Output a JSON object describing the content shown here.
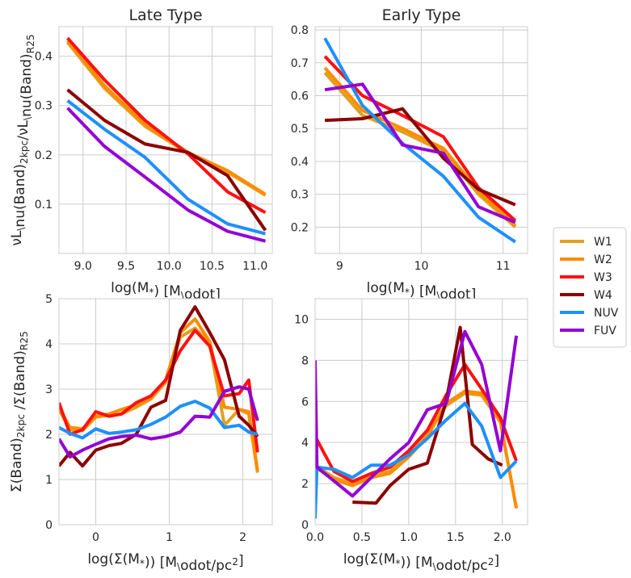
{
  "chart_data": [
    {
      "type": "line",
      "title": "Late Type",
      "xlabel": "log(M$_*$) [M$_\\odot$]",
      "ylabel": "$\\nu$L$_\\nu$(Band)$_{2kpc}$/$\\nu$L$_\\nu$(Band)$_{R25}$",
      "xlim": [
        8.72,
        11.2
      ],
      "ylim": [
        0.0,
        0.46
      ],
      "xticks": [
        "9.0",
        "9.5",
        "10.0",
        "10.5",
        "11.0"
      ],
      "yticks": [
        "0.1",
        "0.2",
        "0.3",
        "0.4"
      ],
      "grid": true,
      "series": [
        {
          "name": "W1",
          "x": [
            8.82,
            9.25,
            9.72,
            10.22,
            10.68,
            11.12
          ],
          "y": [
            0.428,
            0.335,
            0.258,
            0.203,
            0.165,
            0.118
          ]
        },
        {
          "name": "W2",
          "x": [
            8.82,
            9.25,
            9.72,
            10.22,
            10.68,
            11.12
          ],
          "y": [
            0.432,
            0.34,
            0.262,
            0.205,
            0.168,
            0.12
          ]
        },
        {
          "name": "W3",
          "x": [
            8.82,
            9.25,
            9.72,
            10.22,
            10.68,
            11.12
          ],
          "y": [
            0.437,
            0.352,
            0.27,
            0.202,
            0.125,
            0.083
          ]
        },
        {
          "name": "W4",
          "x": [
            8.82,
            9.25,
            9.72,
            10.22,
            10.68,
            11.12
          ],
          "y": [
            0.332,
            0.27,
            0.222,
            0.205,
            0.158,
            0.047
          ]
        },
        {
          "name": "NUV",
          "x": [
            8.82,
            9.25,
            9.72,
            10.22,
            10.68,
            11.12
          ],
          "y": [
            0.31,
            0.252,
            0.195,
            0.11,
            0.06,
            0.04
          ]
        },
        {
          "name": "FUV",
          "x": [
            8.82,
            9.25,
            9.72,
            10.22,
            10.68,
            11.12
          ],
          "y": [
            0.295,
            0.217,
            0.155,
            0.088,
            0.045,
            0.025
          ]
        }
      ]
    },
    {
      "type": "line",
      "title": "Early Type",
      "xlabel": "log(M$_*$) [M$_\\odot$]",
      "ylabel": "",
      "xlim": [
        8.7,
        11.3
      ],
      "ylim": [
        0.12,
        0.81
      ],
      "xticks": [
        "9",
        "10",
        "11"
      ],
      "yticks": [
        "0.2",
        "0.3",
        "0.4",
        "0.5",
        "0.6",
        "0.7",
        "0.8"
      ],
      "grid": true,
      "series": [
        {
          "name": "W1",
          "x": [
            8.82,
            9.28,
            9.77,
            10.27,
            10.7,
            11.15
          ],
          "y": [
            0.67,
            0.54,
            0.49,
            0.43,
            0.3,
            0.2
          ]
        },
        {
          "name": "W2",
          "x": [
            8.82,
            9.28,
            9.77,
            10.27,
            10.7,
            11.15
          ],
          "y": [
            0.685,
            0.555,
            0.5,
            0.44,
            0.31,
            0.205
          ]
        },
        {
          "name": "W3",
          "x": [
            8.82,
            9.28,
            9.77,
            10.27,
            10.7,
            11.15
          ],
          "y": [
            0.72,
            0.6,
            0.54,
            0.475,
            0.32,
            0.22
          ]
        },
        {
          "name": "W4",
          "x": [
            8.82,
            9.28,
            9.77,
            10.27,
            10.7,
            11.15
          ],
          "y": [
            0.525,
            0.53,
            0.56,
            0.41,
            0.315,
            0.268
          ]
        },
        {
          "name": "NUV",
          "x": [
            8.82,
            9.28,
            9.77,
            10.27,
            10.7,
            11.15
          ],
          "y": [
            0.775,
            0.57,
            0.455,
            0.355,
            0.23,
            0.155
          ]
        },
        {
          "name": "FUV",
          "x": [
            8.82,
            9.28,
            9.77,
            10.27,
            10.7,
            11.15
          ],
          "y": [
            0.618,
            0.635,
            0.45,
            0.425,
            0.262,
            0.215
          ]
        }
      ]
    },
    {
      "type": "line",
      "title": "",
      "xlabel": "log($\\Sigma$(M$_*$)) [M$_\\odot$/pc$^2$]",
      "ylabel": "$\\Sigma$(Band)$_{2kpc}$ /$\\Sigma$(Band)$_{R25}$",
      "xlim": [
        -0.5,
        2.4
      ],
      "ylim": [
        0,
        5
      ],
      "xticks": [
        "0",
        "1",
        "2"
      ],
      "yticks": [
        "0",
        "1",
        "2",
        "3",
        "4",
        "5"
      ],
      "grid": true,
      "series": [
        {
          "name": "W1",
          "x": [
            -0.5,
            -0.35,
            -0.18,
            0.0,
            0.18,
            0.35,
            0.55,
            0.75,
            0.95,
            1.15,
            1.35,
            1.55,
            1.75,
            1.95,
            2.08,
            2.2
          ],
          "y": [
            2.55,
            2.1,
            2.08,
            2.38,
            2.42,
            2.45,
            2.6,
            2.78,
            3.15,
            4.15,
            4.35,
            4.0,
            2.2,
            2.55,
            2.45,
            1.15
          ]
        },
        {
          "name": "W2",
          "x": [
            -0.5,
            -0.35,
            -0.18,
            0.0,
            0.18,
            0.35,
            0.55,
            0.75,
            0.95,
            1.15,
            1.35,
            1.55,
            1.75,
            1.95,
            2.08,
            2.2
          ],
          "y": [
            2.6,
            2.15,
            2.12,
            2.4,
            2.45,
            2.55,
            2.65,
            2.8,
            3.2,
            4.25,
            4.55,
            4.05,
            2.6,
            2.55,
            2.5,
            1.2
          ]
        },
        {
          "name": "W3",
          "x": [
            -0.5,
            -0.35,
            -0.18,
            0.0,
            0.18,
            0.35,
            0.55,
            0.75,
            0.95,
            1.15,
            1.35,
            1.55,
            1.75,
            1.95,
            2.08,
            2.2
          ],
          "y": [
            2.7,
            2.0,
            2.1,
            2.5,
            2.4,
            2.45,
            2.7,
            2.85,
            3.2,
            3.85,
            4.3,
            3.95,
            2.85,
            2.9,
            3.2,
            1.6
          ]
        },
        {
          "name": "W4",
          "x": [
            -0.5,
            -0.35,
            -0.18,
            0.0,
            0.18,
            0.35,
            0.55,
            0.75,
            0.95,
            1.15,
            1.35,
            1.55,
            1.75,
            1.95,
            2.08,
            2.2
          ],
          "y": [
            1.3,
            1.6,
            1.3,
            1.65,
            1.75,
            1.8,
            2.0,
            2.6,
            2.75,
            4.3,
            4.82,
            4.25,
            3.65,
            2.4,
            2.2,
            1.95
          ]
        },
        {
          "name": "NUV",
          "x": [
            -0.5,
            -0.35,
            -0.18,
            0.0,
            0.18,
            0.35,
            0.55,
            0.75,
            0.95,
            1.15,
            1.35,
            1.55,
            1.75,
            1.95,
            2.08,
            2.2
          ],
          "y": [
            2.15,
            2.02,
            1.92,
            2.12,
            2.02,
            2.05,
            2.1,
            2.22,
            2.38,
            2.62,
            2.73,
            2.58,
            2.15,
            2.2,
            2.05,
            2.0
          ]
        },
        {
          "name": "FUV",
          "x": [
            -0.5,
            -0.35,
            -0.18,
            0.0,
            0.18,
            0.35,
            0.55,
            0.75,
            0.95,
            1.15,
            1.35,
            1.55,
            1.75,
            1.95,
            2.08,
            2.2
          ],
          "y": [
            1.9,
            1.5,
            1.65,
            1.78,
            1.9,
            1.95,
            1.98,
            1.9,
            1.95,
            2.05,
            2.4,
            2.38,
            2.95,
            3.05,
            3.0,
            2.3
          ]
        }
      ]
    },
    {
      "type": "line",
      "title": "",
      "xlabel": "log($\\Sigma$(M$_*$)) [M$_\\odot$/pc$^2$]",
      "ylabel": "",
      "xlim": [
        0.0,
        2.27
      ],
      "ylim": [
        0,
        11
      ],
      "xticks": [
        "0.0",
        "0.5",
        "1.0",
        "1.5",
        "2.0"
      ],
      "yticks": [
        "0",
        "2",
        "4",
        "6",
        "8",
        "10"
      ],
      "grid": true,
      "series": [
        {
          "name": "W1",
          "x": [
            0.0,
            0.2,
            0.4,
            0.6,
            0.8,
            1.0,
            1.2,
            1.4,
            1.6,
            1.78,
            1.98,
            2.15
          ],
          "y": [
            2.9,
            2.3,
            2.0,
            2.4,
            2.6,
            3.4,
            4.4,
            5.8,
            6.4,
            6.3,
            5.0,
            0.8
          ]
        },
        {
          "name": "W2",
          "x": [
            0.0,
            0.2,
            0.4,
            0.6,
            0.8,
            1.0,
            1.2,
            1.4,
            1.6,
            1.78,
            1.98,
            2.15
          ],
          "y": [
            2.8,
            2.2,
            1.9,
            2.3,
            2.5,
            3.3,
            4.3,
            5.9,
            6.5,
            6.4,
            5.0,
            0.8
          ]
        },
        {
          "name": "W3",
          "x": [
            0.0,
            0.2,
            0.4,
            0.6,
            0.8,
            1.0,
            1.2,
            1.4,
            1.6,
            1.78,
            1.98,
            2.15
          ],
          "y": [
            4.3,
            2.6,
            2.1,
            2.5,
            2.8,
            3.6,
            4.6,
            6.3,
            7.8,
            6.6,
            5.2,
            3.1
          ]
        },
        {
          "name": "W4",
          "x": [
            0.4,
            0.65,
            0.8,
            1.0,
            1.2,
            1.4,
            1.55,
            1.68,
            1.85,
            2.0
          ],
          "y": [
            1.1,
            1.05,
            1.9,
            2.7,
            3.0,
            6.0,
            9.6,
            3.9,
            3.2,
            2.9
          ]
        },
        {
          "name": "NUV",
          "x": [
            0.0,
            0.02,
            0.2,
            0.4,
            0.6,
            0.8,
            1.0,
            1.2,
            1.4,
            1.6,
            1.78,
            1.98,
            2.15
          ],
          "y": [
            0.3,
            2.8,
            2.7,
            2.3,
            2.9,
            2.9,
            3.4,
            4.2,
            5.1,
            5.9,
            4.8,
            2.3,
            3.1
          ]
        },
        {
          "name": "FUV",
          "x": [
            0.0,
            0.02,
            0.4,
            0.6,
            0.8,
            1.0,
            1.2,
            1.4,
            1.6,
            1.78,
            1.98,
            2.15
          ],
          "y": [
            8.0,
            2.8,
            1.4,
            2.3,
            3.2,
            4.0,
            5.6,
            5.9,
            9.4,
            7.8,
            3.6,
            9.2
          ]
        }
      ]
    }
  ],
  "legend": {
    "placement": "right",
    "entries": [
      {
        "name": "W1",
        "color": "#e0a020"
      },
      {
        "name": "W2",
        "color": "#ff8c00"
      },
      {
        "name": "W3",
        "color": "#ff1111"
      },
      {
        "name": "W4",
        "color": "#8b0000"
      },
      {
        "name": "NUV",
        "color": "#1e90ff"
      },
      {
        "name": "FUV",
        "color": "#9400d3"
      }
    ]
  }
}
